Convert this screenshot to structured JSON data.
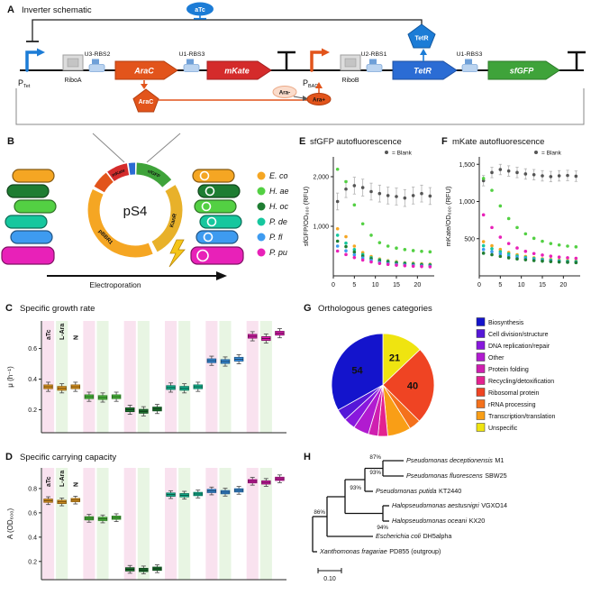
{
  "panelA": {
    "letter": "A",
    "title": "Inverter schematic",
    "labels": {
      "ptet": "P",
      "ptet_sub": "Tet",
      "pbad": "P",
      "pbad_sub": "BAD",
      "riboa": "RiboA",
      "ribob": "RiboB",
      "u3rbs2": "U3-RBS2",
      "u1rbs3a": "U1-RBS3",
      "u2rbs1": "U2-RBS1",
      "u1rbs3b": "U1-RBS3",
      "arac_gene": "AraC",
      "mkate_gene": "mKate",
      "tetr_gene": "TetR",
      "sfgfp_gene": "sfGFP",
      "atc": "aTc",
      "tetr_protein": "TetR",
      "arac_protein": "AraC",
      "ara_minus": "Ara-",
      "ara_plus": "Ara+"
    }
  },
  "panelB": {
    "letter": "B",
    "plasmid_name": "pS4",
    "arrow_label": "Electroporation",
    "ring_labels": {
      "mkate": "mKate",
      "sfgfp": "sfGFP",
      "kanr": "KanR",
      "pbbr1": "pBBR1"
    },
    "legend": [
      {
        "label": "E. co",
        "color": "#F5A623"
      },
      {
        "label": "H. ae",
        "color": "#53D043"
      },
      {
        "label": "H. oc",
        "color": "#1E7D32"
      },
      {
        "label": "P. de",
        "color": "#16C79E"
      },
      {
        "label": "P. fl",
        "color": "#3E9BF0"
      },
      {
        "label": "P. pu",
        "color": "#E821B8"
      }
    ]
  },
  "panelC": {
    "letter": "C"
  },
  "panelD": {
    "letter": "D"
  },
  "panelE": {
    "letter": "E"
  },
  "panelF": {
    "letter": "F"
  },
  "panelG": {
    "letter": "G"
  },
  "panelH": {
    "letter": "H",
    "taxa": [
      {
        "italic": "Pseudomonas deceptionensis",
        "roman": "M1",
        "color": "#16C79E"
      },
      {
        "italic": "Pseudomonas fluorescens",
        "roman": "SBW25",
        "color": "#3E9BF0"
      },
      {
        "italic": "Pseudomonas putida",
        "roman": "KT2440",
        "color": "#E821B8"
      },
      {
        "italic": "Halopseudomonas aestusnigri",
        "roman": "VGXO14",
        "color": "#53D043"
      },
      {
        "italic": "Halopseudomonas oceani",
        "roman": "KX20",
        "color": "#1E7D32"
      },
      {
        "italic": "Escherichia coli",
        "roman": "DH5alpha",
        "color": "#F5A623"
      },
      {
        "italic": "Xanthomonas fragariae",
        "roman": "PD855 (outgroup)",
        "color": "#111111"
      }
    ],
    "bootstraps": [
      "87%",
      "93%",
      "93%",
      "86%",
      "94%"
    ],
    "scale_label": "0.10"
  },
  "chart_data": [
    {
      "id": "E",
      "type": "scatter",
      "title": "sfGFP autofluorescence",
      "ylabel": "sfGFP/OD₆₀₀ (RFU)",
      "legend": "= Blank",
      "x": [
        1,
        3,
        5,
        7,
        9,
        11,
        13,
        15,
        17,
        19,
        21,
        23
      ],
      "xticks": [
        0,
        5,
        10,
        15,
        20
      ],
      "xlim": [
        0,
        24
      ],
      "ylim": [
        0,
        2400
      ],
      "yticks": [
        {
          "v": 1000,
          "label": "1,000"
        },
        {
          "v": 2000,
          "label": "2,000"
        }
      ],
      "series": [
        {
          "name": "Blank",
          "color": "#555555",
          "err": 170,
          "err_color": "#B0B0B0",
          "values": [
            1500,
            1750,
            1820,
            1780,
            1700,
            1660,
            1620,
            1600,
            1570,
            1620,
            1660,
            1610
          ]
        },
        {
          "name": "H. ae",
          "color": "#53D043",
          "values": [
            2150,
            1900,
            1430,
            1050,
            820,
            670,
            600,
            560,
            530,
            510,
            495,
            485
          ]
        },
        {
          "name": "E. co",
          "color": "#F5A623",
          "values": [
            950,
            790,
            600,
            470,
            390,
            340,
            305,
            285,
            265,
            255,
            245,
            235
          ]
        },
        {
          "name": "P. de",
          "color": "#16C79E",
          "values": [
            820,
            660,
            530,
            430,
            365,
            325,
            295,
            272,
            255,
            242,
            232,
            225
          ]
        },
        {
          "name": "H. oc",
          "color": "#1E7D32",
          "values": [
            700,
            590,
            480,
            400,
            345,
            305,
            280,
            260,
            245,
            232,
            222,
            215
          ]
        },
        {
          "name": "P. fl",
          "color": "#3E9BF0",
          "values": [
            600,
            505,
            425,
            360,
            310,
            275,
            250,
            232,
            220,
            210,
            202,
            196
          ]
        },
        {
          "name": "P. pu",
          "color": "#E821B8",
          "values": [
            500,
            430,
            370,
            320,
            282,
            252,
            232,
            216,
            204,
            195,
            188,
            183
          ]
        }
      ]
    },
    {
      "id": "F",
      "type": "scatter",
      "title": "mKate autofluorescence",
      "ylabel": "mKate/OD₆₀₀ (RFU)",
      "legend": "= Blank",
      "x": [
        1,
        3,
        5,
        7,
        9,
        11,
        13,
        15,
        17,
        19,
        21,
        23
      ],
      "xticks": [
        0,
        5,
        10,
        15,
        20
      ],
      "xlim": [
        0,
        24
      ],
      "ylim": [
        0,
        1600
      ],
      "yticks": [
        {
          "v": 500,
          "label": "500"
        },
        {
          "v": 1000,
          "label": "1,000"
        },
        {
          "v": 1500,
          "label": "1,500"
        }
      ],
      "series": [
        {
          "name": "Blank",
          "color": "#555555",
          "err": 70,
          "err_color": "#B0B0B0",
          "values": [
            1280,
            1390,
            1430,
            1410,
            1390,
            1370,
            1360,
            1345,
            1335,
            1345,
            1350,
            1340
          ]
        },
        {
          "name": "H. ae",
          "color": "#53D043",
          "values": [
            1310,
            1150,
            940,
            770,
            650,
            565,
            505,
            465,
            435,
            415,
            400,
            390
          ]
        },
        {
          "name": "P. pu",
          "color": "#E821B8",
          "values": [
            820,
            650,
            520,
            435,
            375,
            330,
            300,
            280,
            265,
            252,
            243,
            236
          ]
        },
        {
          "name": "E. co",
          "color": "#F5A623",
          "values": [
            460,
            405,
            355,
            315,
            285,
            262,
            244,
            230,
            220,
            212,
            205,
            200
          ]
        },
        {
          "name": "P. de",
          "color": "#16C79E",
          "values": [
            405,
            365,
            325,
            295,
            268,
            248,
            232,
            220,
            211,
            203,
            197,
            192
          ]
        },
        {
          "name": "P. fl",
          "color": "#3E9BF0",
          "values": [
            355,
            325,
            295,
            268,
            248,
            232,
            218,
            207,
            199,
            192,
            187,
            183
          ]
        },
        {
          "name": "H. oc",
          "color": "#1E7D32",
          "values": [
            305,
            285,
            262,
            243,
            228,
            216,
            206,
            198,
            192,
            186,
            182,
            178
          ]
        }
      ]
    },
    {
      "id": "C",
      "type": "box",
      "title": "Specific growth rate",
      "ylabel": "μ (h⁻¹)",
      "box_iqr": 0.012,
      "box_whisker": 0.03,
      "ylim": [
        0.05,
        0.78
      ],
      "yticks": [
        {
          "v": 0.2,
          "label": "0.2"
        },
        {
          "v": 0.4,
          "label": "0.4"
        },
        {
          "v": 0.6,
          "label": "0.6"
        }
      ],
      "conditions": [
        {
          "label": "aTc",
          "color": "#D62118",
          "stripe": "#F9E2EF"
        },
        {
          "label": "L-Ara",
          "color": "#2E8B22",
          "stripe": "#E8F5E3"
        },
        {
          "label": "N",
          "color": "#1A1A1A",
          "stripe": "#FFFFFF"
        }
      ],
      "groups": [
        {
          "species": "E. co",
          "color": "#F5A623",
          "medians": [
            0.35,
            0.34,
            0.35
          ]
        },
        {
          "species": "H. ae",
          "color": "#53D043",
          "medians": [
            0.285,
            0.28,
            0.285
          ]
        },
        {
          "species": "H. oc",
          "color": "#1E7D32",
          "medians": [
            0.2,
            0.19,
            0.205
          ]
        },
        {
          "species": "P. de",
          "color": "#16C79E",
          "medians": [
            0.345,
            0.34,
            0.35
          ]
        },
        {
          "species": "P. fl",
          "color": "#3E9BF0",
          "medians": [
            0.52,
            0.515,
            0.53
          ]
        },
        {
          "species": "P. pu",
          "color": "#E821B8",
          "medians": [
            0.68,
            0.665,
            0.7
          ]
        }
      ]
    },
    {
      "id": "D",
      "type": "box",
      "title": "Specific carrying capacity",
      "ylabel": "A (OD₆₀₀)",
      "box_iqr": 0.013,
      "box_whisker": 0.032,
      "ylim": [
        0.05,
        0.97
      ],
      "yticks": [
        {
          "v": 0.2,
          "label": "0.2"
        },
        {
          "v": 0.4,
          "label": "0.4"
        },
        {
          "v": 0.6,
          "label": "0.6"
        },
        {
          "v": 0.8,
          "label": "0.8"
        }
      ],
      "conditions": [
        {
          "label": "aTc",
          "color": "#D62118",
          "stripe": "#F9E2EF"
        },
        {
          "label": "L-Ara",
          "color": "#2E8B22",
          "stripe": "#E8F5E3"
        },
        {
          "label": "N",
          "color": "#1A1A1A",
          "stripe": "#FFFFFF"
        }
      ],
      "groups": [
        {
          "species": "E. co",
          "color": "#F5A623",
          "medians": [
            0.7,
            0.69,
            0.705
          ]
        },
        {
          "species": "H. ae",
          "color": "#53D043",
          "medians": [
            0.555,
            0.55,
            0.56
          ]
        },
        {
          "species": "H. oc",
          "color": "#1E7D32",
          "medians": [
            0.135,
            0.13,
            0.14
          ]
        },
        {
          "species": "P. de",
          "color": "#16C79E",
          "medians": [
            0.75,
            0.745,
            0.755
          ]
        },
        {
          "species": "P. fl",
          "color": "#3E9BF0",
          "medians": [
            0.78,
            0.77,
            0.785
          ]
        },
        {
          "species": "P. pu",
          "color": "#E821B8",
          "medians": [
            0.86,
            0.85,
            0.88
          ]
        }
      ]
    },
    {
      "id": "G",
      "type": "pie",
      "title": "Orthologous genes categories",
      "slices": [
        {
          "category": "Unspecific",
          "value": 21,
          "color": "#EFE410",
          "show_value": true,
          "value_color": "#222222"
        },
        {
          "category": "Ribosomal protein",
          "value": 40,
          "color": "#EF4423",
          "show_value": true,
          "value_color": "#FFFFFF"
        },
        {
          "category": "rRNA processing",
          "value": 6,
          "color": "#F4711C"
        },
        {
          "category": "Transcription/translation",
          "value": 12,
          "color": "#F99E16"
        },
        {
          "category": "Recycling/detoxification",
          "value": 5,
          "color": "#E32290"
        },
        {
          "category": "Protein folding",
          "value": 5,
          "color": "#CF1FB0"
        },
        {
          "category": "Other",
          "value": 8,
          "color": "#B11BD0"
        },
        {
          "category": "DNA replication/repair",
          "value": 6,
          "color": "#8818DD"
        },
        {
          "category": "Cell division/structure",
          "value": 6,
          "color": "#5517D8"
        },
        {
          "category": "Biosynthesis",
          "value": 54,
          "color": "#1414CC",
          "show_value": true,
          "value_color": "#FFFFFF"
        }
      ],
      "legend_order": [
        "Biosynthesis",
        "Cell division/structure",
        "DNA replication/repair",
        "Other",
        "Protein folding",
        "Recycling/detoxification",
        "Ribosomal protein",
        "rRNA processing",
        "Transcription/translation",
        "Unspecific"
      ]
    }
  ]
}
